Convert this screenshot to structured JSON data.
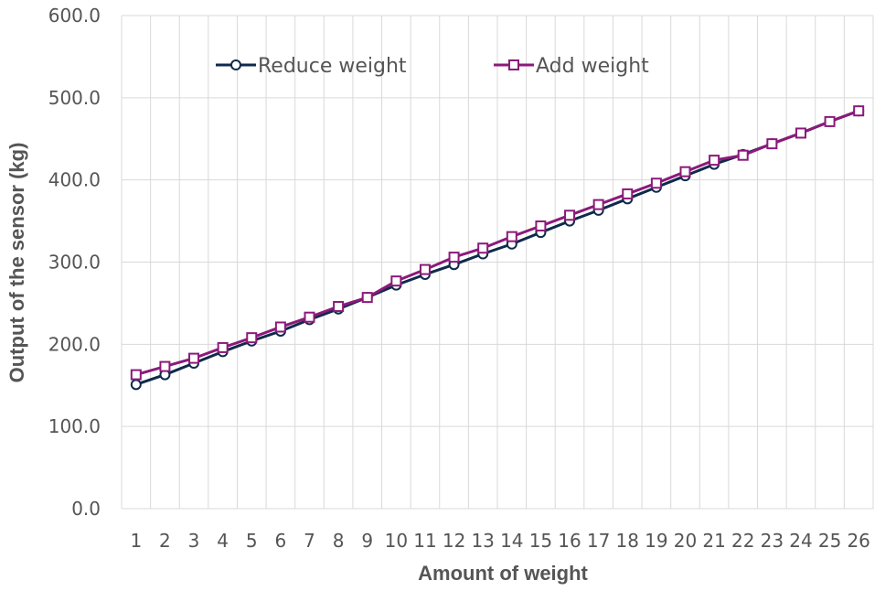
{
  "chart_data": {
    "type": "line",
    "title": "",
    "xlabel": "Amount of weight",
    "ylabel": "Output of the sensor (kg)",
    "x": [
      "1",
      "2",
      "3",
      "4",
      "5",
      "6",
      "7",
      "8",
      "9",
      "10",
      "11",
      "12",
      "13",
      "14",
      "15",
      "16",
      "17",
      "18",
      "19",
      "20",
      "21",
      "22",
      "23",
      "24",
      "25",
      "26"
    ],
    "ylim": [
      0,
      600
    ],
    "yticks": [
      "0.0",
      "100.0",
      "200.0",
      "300.0",
      "400.0",
      "500.0",
      "600.0"
    ],
    "grid": true,
    "legend": "top",
    "series": [
      {
        "name": "Reduce weight",
        "color": "#0f2a4a",
        "marker": "circle",
        "values": [
          151,
          163,
          177,
          191,
          204,
          216,
          230,
          243,
          257,
          272,
          285,
          297,
          310,
          322,
          336,
          350,
          363,
          377,
          391,
          405,
          419,
          431,
          444,
          457,
          471,
          484
        ]
      },
      {
        "name": "Add weight",
        "color": "#8b1a7a",
        "marker": "square",
        "values": [
          163,
          173,
          183,
          196,
          208,
          221,
          233,
          246,
          257,
          277,
          291,
          306,
          317,
          331,
          344,
          357,
          370,
          383,
          396,
          410,
          424,
          430,
          444,
          457,
          471,
          484
        ]
      }
    ]
  }
}
